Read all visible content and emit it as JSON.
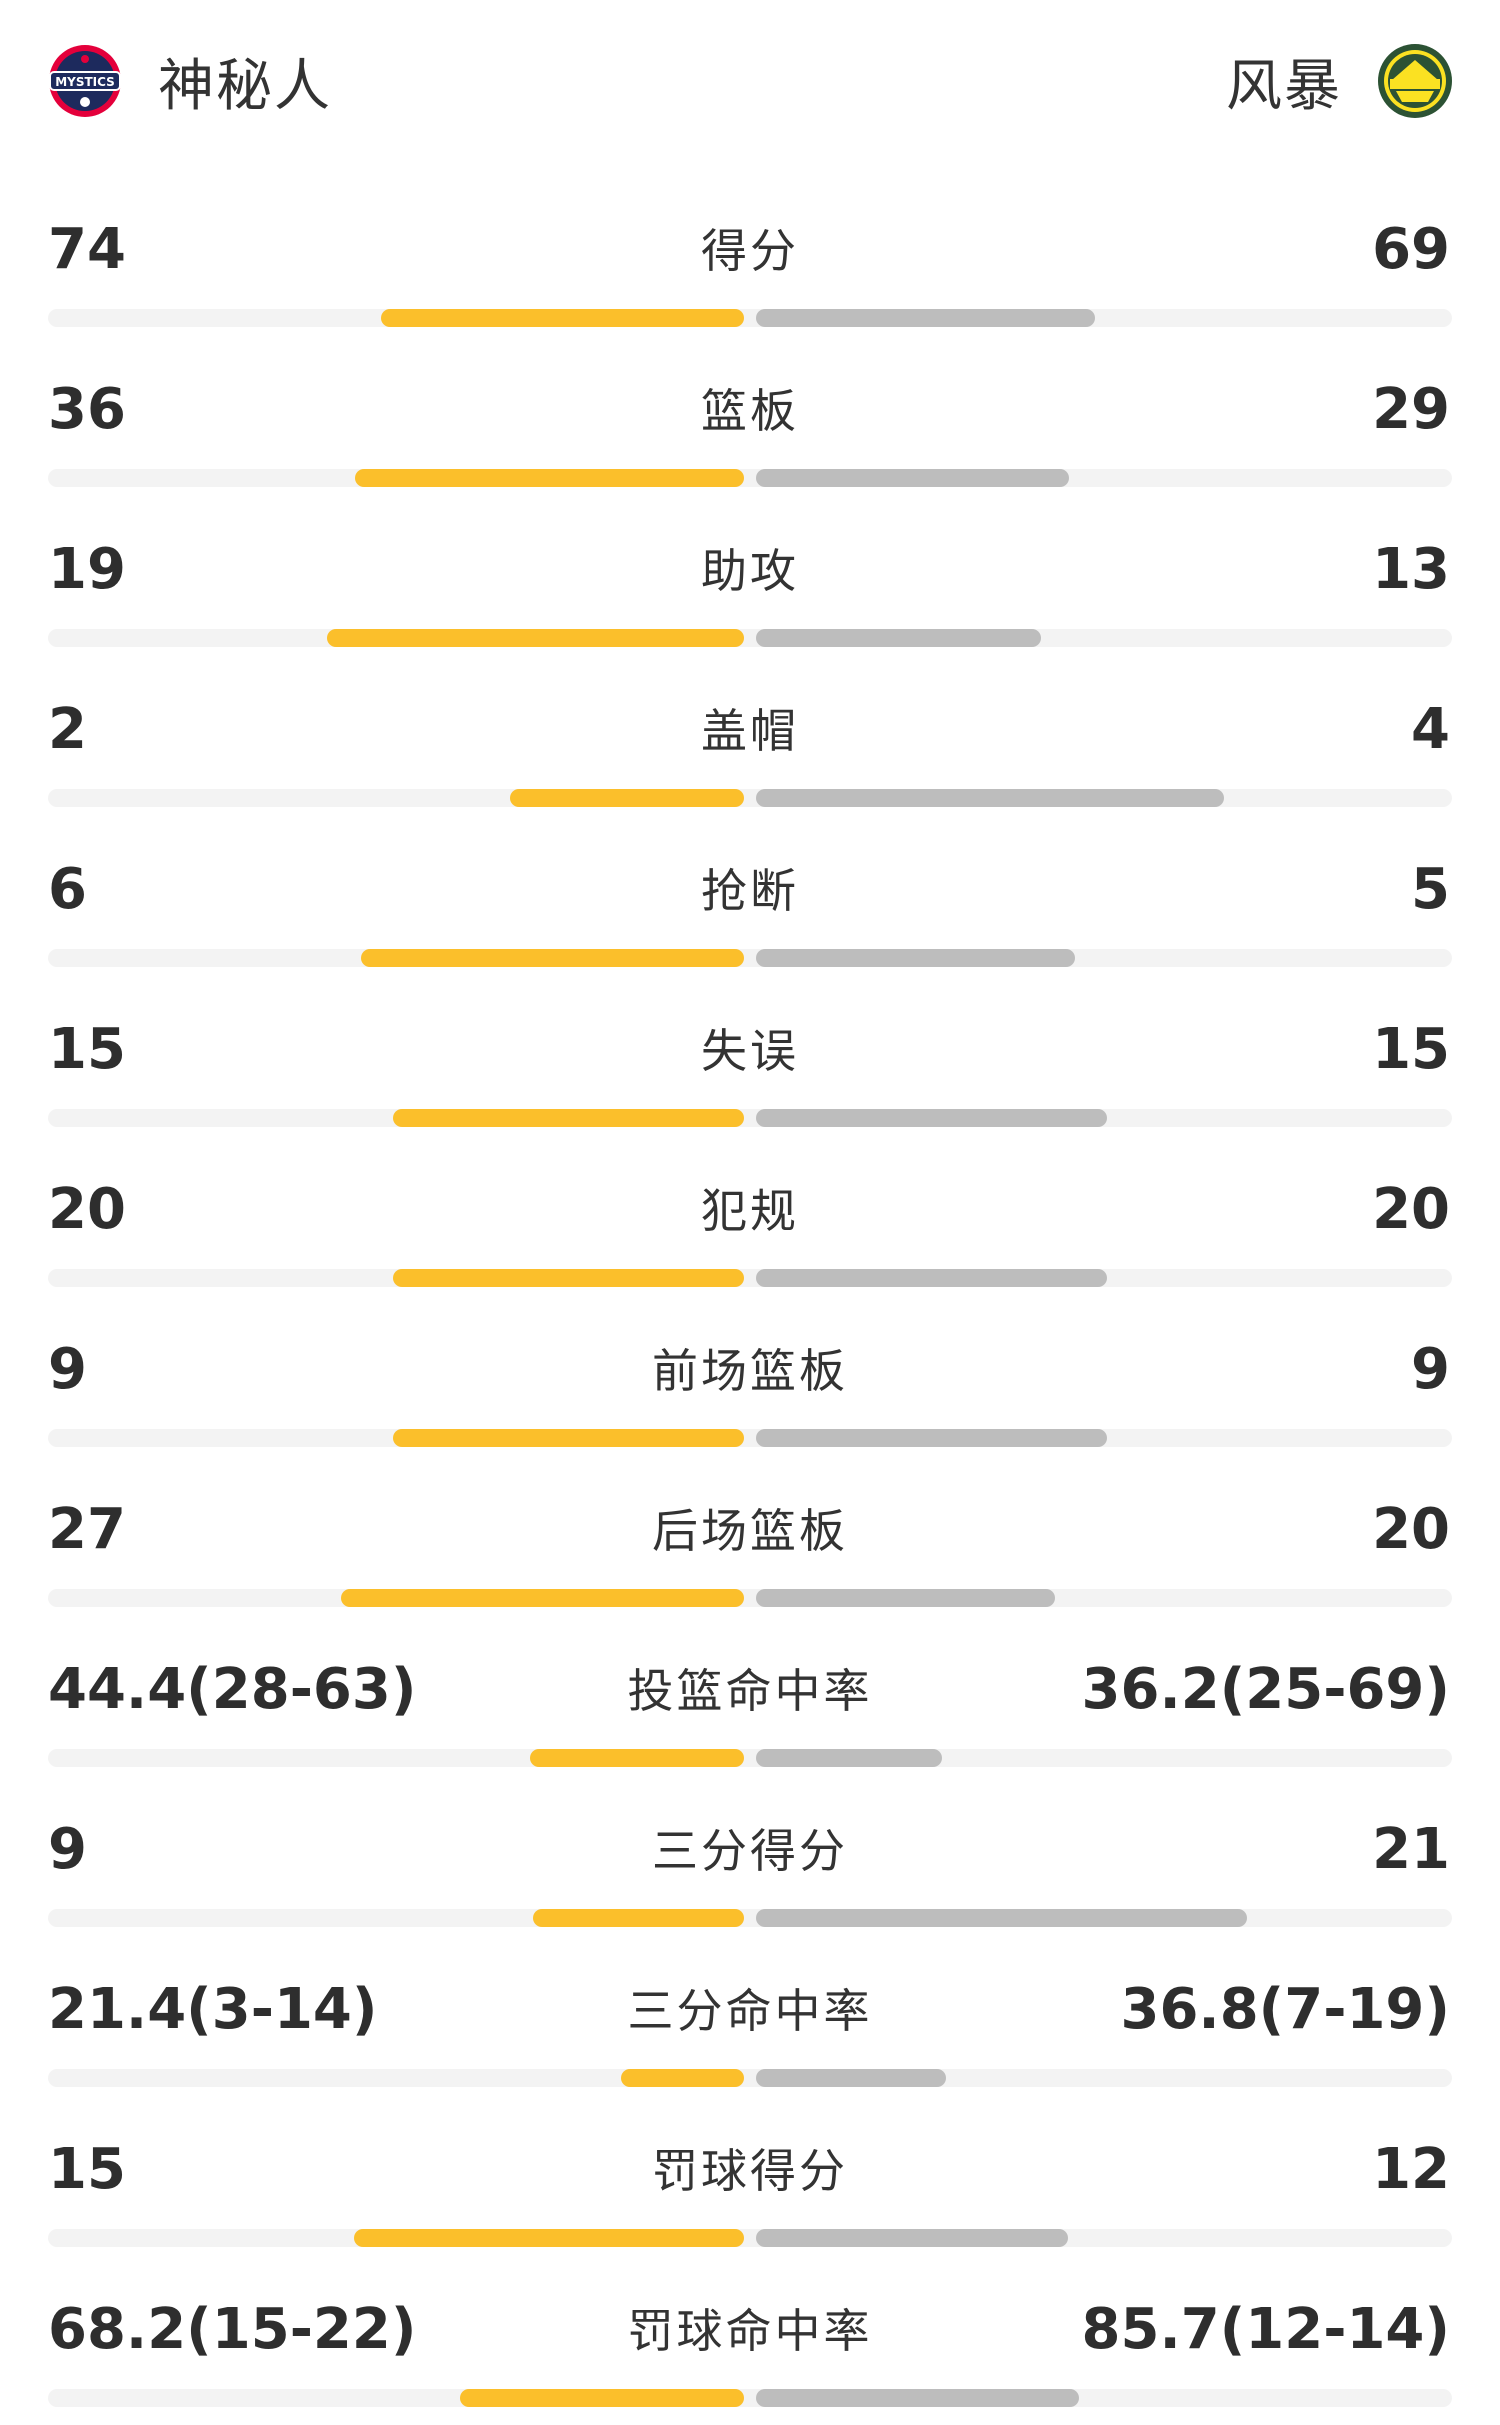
{
  "teams": {
    "left": {
      "name": "神秘人",
      "logo_icon": "mystics-logo-icon",
      "color": "#fbbf2b"
    },
    "right": {
      "name": "风暴",
      "logo_icon": "storm-logo-icon",
      "color": "#bdbdbd"
    }
  },
  "stats": [
    {
      "label": "得分",
      "left": "74",
      "right": "69",
      "left_share": 0.517,
      "right_share": 0.483
    },
    {
      "label": "篮板",
      "left": "36",
      "right": "29",
      "left_share": 0.554,
      "right_share": 0.446
    },
    {
      "label": "助攻",
      "left": "19",
      "right": "13",
      "left_share": 0.594,
      "right_share": 0.406
    },
    {
      "label": "盖帽",
      "left": "2",
      "right": "4",
      "left_share": 0.333,
      "right_share": 0.667
    },
    {
      "label": "抢断",
      "left": "6",
      "right": "5",
      "left_share": 0.545,
      "right_share": 0.455
    },
    {
      "label": "失误",
      "left": "15",
      "right": "15",
      "left_share": 0.5,
      "right_share": 0.5
    },
    {
      "label": "犯规",
      "left": "20",
      "right": "20",
      "left_share": 0.5,
      "right_share": 0.5
    },
    {
      "label": "前场篮板",
      "left": "9",
      "right": "9",
      "left_share": 0.5,
      "right_share": 0.5
    },
    {
      "label": "后场篮板",
      "left": "27",
      "right": "20",
      "left_share": 0.574,
      "right_share": 0.426
    },
    {
      "label": "投篮命中率",
      "left": "44.4(28-63)",
      "right": "36.2(25-69)",
      "left_share": 0.305,
      "right_share": 0.265
    },
    {
      "label": "三分得分",
      "left": "9",
      "right": "21",
      "left_share": 0.3,
      "right_share": 0.7
    },
    {
      "label": "三分命中率",
      "left": "21.4(3-14)",
      "right": "36.8(7-19)",
      "left_share": 0.175,
      "right_share": 0.27
    },
    {
      "label": "罚球得分",
      "left": "15",
      "right": "12",
      "left_share": 0.555,
      "right_share": 0.445
    },
    {
      "label": "罚球命中率",
      "left": "68.2(15-22)",
      "right": "85.7(12-14)",
      "left_share": 0.405,
      "right_share": 0.46
    }
  ]
}
